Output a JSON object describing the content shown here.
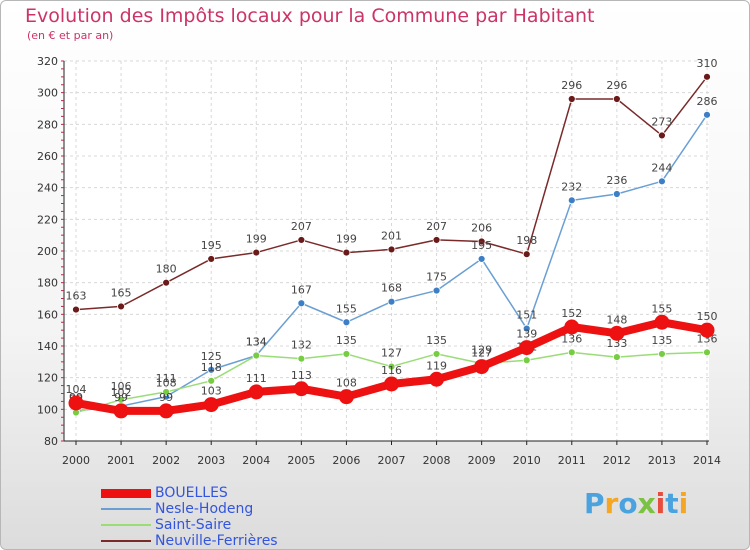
{
  "title": "Evolution des Impôts locaux pour la Commune par Habitant",
  "subtitle": "(en € et par an)",
  "brand": {
    "letters": [
      "P",
      "r",
      "o",
      "x",
      "i",
      "t",
      "i"
    ],
    "colors": [
      "#4aa3df",
      "#f5a623",
      "#4aa3df",
      "#7cc242",
      "#e74c3c",
      "#4aa3df",
      "#f5a623"
    ]
  },
  "chart_data": {
    "type": "line",
    "title": "Evolution des Impôts locaux pour la Commune par Habitant",
    "ylabel": "(en € et par an)",
    "x": [
      "2000",
      "2001",
      "2002",
      "2003",
      "2004",
      "2005",
      "2006",
      "2007",
      "2008",
      "2009",
      "2010",
      "2011",
      "2012",
      "2013",
      "2014"
    ],
    "ylim": [
      80,
      320
    ],
    "yticks": [
      80,
      100,
      120,
      140,
      160,
      180,
      200,
      220,
      240,
      260,
      280,
      300,
      320
    ],
    "series": [
      {
        "name": "Neuville-Ferrières",
        "color": "#7a2a2a",
        "marker": "#6b1a1a",
        "values": [
          163,
          165,
          180,
          195,
          199,
          207,
          199,
          201,
          207,
          206,
          198,
          296,
          296,
          273,
          310
        ]
      },
      {
        "name": "Nesle-Hodeng",
        "color": "#6b9fd4",
        "marker": "#3d7fc6",
        "values": [
          99,
          102,
          108,
          125,
          134,
          167,
          155,
          168,
          175,
          195,
          151,
          232,
          236,
          244,
          286
        ]
      },
      {
        "name": "Saint-Saire",
        "color": "#99dd77",
        "marker": "#77cc44",
        "values": [
          98,
          106,
          111,
          118,
          134,
          132,
          135,
          127,
          135,
          129,
          131,
          136,
          133,
          135,
          136
        ]
      },
      {
        "name": "BOUELLES",
        "color": "#ee1111",
        "marker": "#ee1111",
        "values": [
          104,
          99,
          99,
          103,
          111,
          113,
          108,
          116,
          119,
          127,
          139,
          152,
          148,
          155,
          150
        ]
      }
    ],
    "legend": [
      "BOUELLES",
      "Nesle-Hodeng",
      "Saint-Saire",
      "Neuville-Ferrières"
    ],
    "legend_position": "bottom-left"
  }
}
